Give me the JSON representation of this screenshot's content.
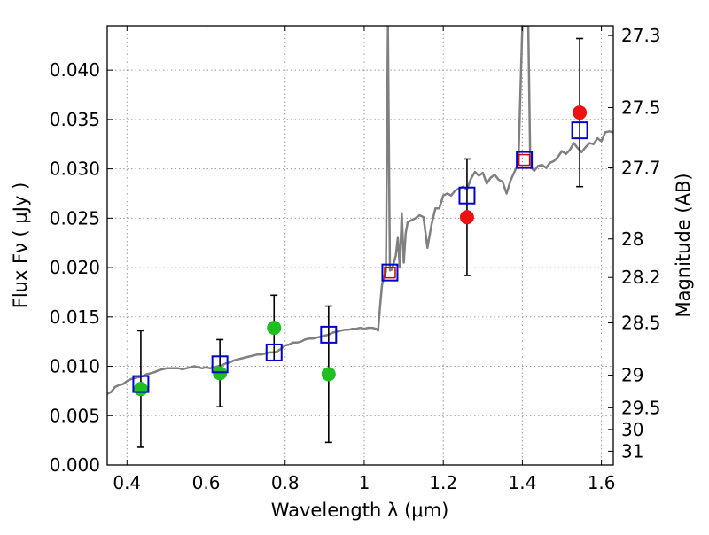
{
  "chart_data": {
    "type": "scatter",
    "xlabel": "Wavelength  λ (μm)",
    "ylabel": "Flux  Fν  ( μJy )",
    "y2label": "Magnitude (AB)",
    "xlim": [
      0.35,
      1.63
    ],
    "ylim": [
      0.0,
      0.0445
    ],
    "grid": true,
    "x_ticks": [
      0.4,
      0.6,
      0.8,
      1.0,
      1.2,
      1.4,
      1.6
    ],
    "x_tick_labels": [
      "0.4",
      "0.6",
      "0.8",
      "1",
      "1.2",
      "1.4",
      "1.6"
    ],
    "y_ticks": [
      0.0,
      0.005,
      0.01,
      0.015,
      0.02,
      0.025,
      0.03,
      0.035,
      0.04
    ],
    "y_tick_labels": [
      "0.000",
      "0.005",
      "0.010",
      "0.015",
      "0.020",
      "0.025",
      "0.030",
      "0.035",
      "0.040"
    ],
    "mag_ticks": [
      {
        "label": "27.3",
        "value": 0.0435
      },
      {
        "label": "27.5",
        "value": 0.0362
      },
      {
        "label": "27.7",
        "value": 0.0301
      },
      {
        "label": "28",
        "value": 0.0229
      },
      {
        "label": "28.2",
        "value": 0.019
      },
      {
        "label": "28.5",
        "value": 0.0144
      },
      {
        "label": "29",
        "value": 0.0091
      },
      {
        "label": "29.5",
        "value": 0.0058
      },
      {
        "label": "30",
        "value": 0.0036
      },
      {
        "label": "31",
        "value": 0.0014
      }
    ],
    "colors": {
      "spectrum": "#808080",
      "green_point": "#1fbf1f",
      "red_point": "#ee1111",
      "model_box": "#0000cc",
      "model_box_inner_red": "#cc0000",
      "errorbar": "#000000",
      "grid": "#999999"
    },
    "series": [
      {
        "kind": "spectrum",
        "x": [
          0.35,
          0.36,
          0.37,
          0.38,
          0.39,
          0.4,
          0.41,
          0.42,
          0.43,
          0.44,
          0.45,
          0.46,
          0.47,
          0.48,
          0.49,
          0.5,
          0.51,
          0.52,
          0.53,
          0.54,
          0.55,
          0.56,
          0.57,
          0.58,
          0.59,
          0.6,
          0.61,
          0.62,
          0.63,
          0.64,
          0.65,
          0.66,
          0.67,
          0.68,
          0.69,
          0.7,
          0.71,
          0.72,
          0.73,
          0.74,
          0.75,
          0.76,
          0.77,
          0.78,
          0.79,
          0.8,
          0.81,
          0.82,
          0.83,
          0.84,
          0.85,
          0.86,
          0.87,
          0.88,
          0.89,
          0.9,
          0.91,
          0.92,
          0.93,
          0.94,
          0.95,
          0.96,
          0.97,
          0.98,
          0.99,
          1.0,
          1.01,
          1.02,
          1.03,
          1.035,
          1.04,
          1.045,
          1.05,
          1.055,
          1.06,
          1.065,
          1.07,
          1.075,
          1.08,
          1.085,
          1.09,
          1.095,
          1.1,
          1.105,
          1.11,
          1.12,
          1.13,
          1.14,
          1.15,
          1.16,
          1.17,
          1.18,
          1.19,
          1.2,
          1.21,
          1.22,
          1.23,
          1.24,
          1.25,
          1.26,
          1.27,
          1.28,
          1.29,
          1.3,
          1.31,
          1.32,
          1.33,
          1.34,
          1.35,
          1.36,
          1.37,
          1.38,
          1.39,
          1.4,
          1.405,
          1.41,
          1.415,
          1.42,
          1.425,
          1.43,
          1.44,
          1.45,
          1.46,
          1.47,
          1.48,
          1.49,
          1.5,
          1.51,
          1.52,
          1.53,
          1.54,
          1.55,
          1.56,
          1.57,
          1.58,
          1.59,
          1.6,
          1.61,
          1.62,
          1.63
        ],
        "y": [
          0.0072,
          0.0074,
          0.0079,
          0.0081,
          0.0082,
          0.0085,
          0.0087,
          0.0088,
          0.0089,
          0.009,
          0.0092,
          0.0093,
          0.0094,
          0.0096,
          0.0097,
          0.0098,
          0.0098,
          0.0098,
          0.0098,
          0.0097,
          0.0098,
          0.0099,
          0.01,
          0.0099,
          0.0098,
          0.0099,
          0.0098,
          0.0099,
          0.01,
          0.0101,
          0.0103,
          0.0104,
          0.0106,
          0.0107,
          0.0108,
          0.0109,
          0.011,
          0.0111,
          0.0112,
          0.0112,
          0.0113,
          0.0114,
          0.0114,
          0.0115,
          0.0118,
          0.0121,
          0.0122,
          0.0124,
          0.0124,
          0.0125,
          0.0127,
          0.0128,
          0.0128,
          0.0129,
          0.013,
          0.0131,
          0.0132,
          0.0134,
          0.0135,
          0.0136,
          0.0137,
          0.0137,
          0.0138,
          0.0138,
          0.0139,
          0.0138,
          0.0139,
          0.0139,
          0.0138,
          0.0136,
          0.016,
          0.0182,
          0.019,
          0.0196,
          0.0445,
          0.0197,
          0.0198,
          0.0205,
          0.0212,
          0.023,
          0.02,
          0.0255,
          0.0205,
          0.0235,
          0.0246,
          0.0248,
          0.025,
          0.0253,
          0.0251,
          0.022,
          0.0243,
          0.026,
          0.026,
          0.0273,
          0.0275,
          0.0273,
          0.0278,
          0.028,
          0.0282,
          0.0279,
          0.029,
          0.0297,
          0.0293,
          0.0296,
          0.0285,
          0.0291,
          0.0294,
          0.0289,
          0.0287,
          0.0275,
          0.0288,
          0.0297,
          0.0305,
          0.0445,
          0.0445,
          0.0445,
          0.0445,
          0.0307,
          0.03,
          0.0298,
          0.0303,
          0.0304,
          0.0301,
          0.0306,
          0.0308,
          0.0312,
          0.0318,
          0.0315,
          0.0319,
          0.0326,
          0.0321,
          0.0317,
          0.0322,
          0.0326,
          0.0325,
          0.0331,
          0.0328,
          0.0337,
          0.0338,
          0.0337
        ]
      },
      {
        "kind": "points",
        "marker": "green",
        "x": [
          0.435,
          0.635,
          0.772,
          0.91
        ],
        "y": [
          0.0077,
          0.0093,
          0.0139,
          0.0092
        ],
        "yerr": [
          0.0059,
          0.0034,
          0.0033,
          0.0069
        ]
      },
      {
        "kind": "points",
        "marker": "red",
        "x": [
          1.26,
          1.545
        ],
        "y": [
          0.0251,
          0.0357
        ],
        "yerr": [
          0.0059,
          0.0075
        ]
      },
      {
        "kind": "model",
        "marker": "square",
        "x": [
          0.435,
          0.635,
          0.772,
          0.91,
          1.065,
          1.26,
          1.405,
          1.545
        ],
        "y": [
          0.0082,
          0.0102,
          0.0114,
          0.0132,
          0.0195,
          0.0273,
          0.0309,
          0.0339
        ],
        "inner_red": [
          false,
          false,
          false,
          false,
          true,
          false,
          true,
          false
        ]
      }
    ]
  }
}
